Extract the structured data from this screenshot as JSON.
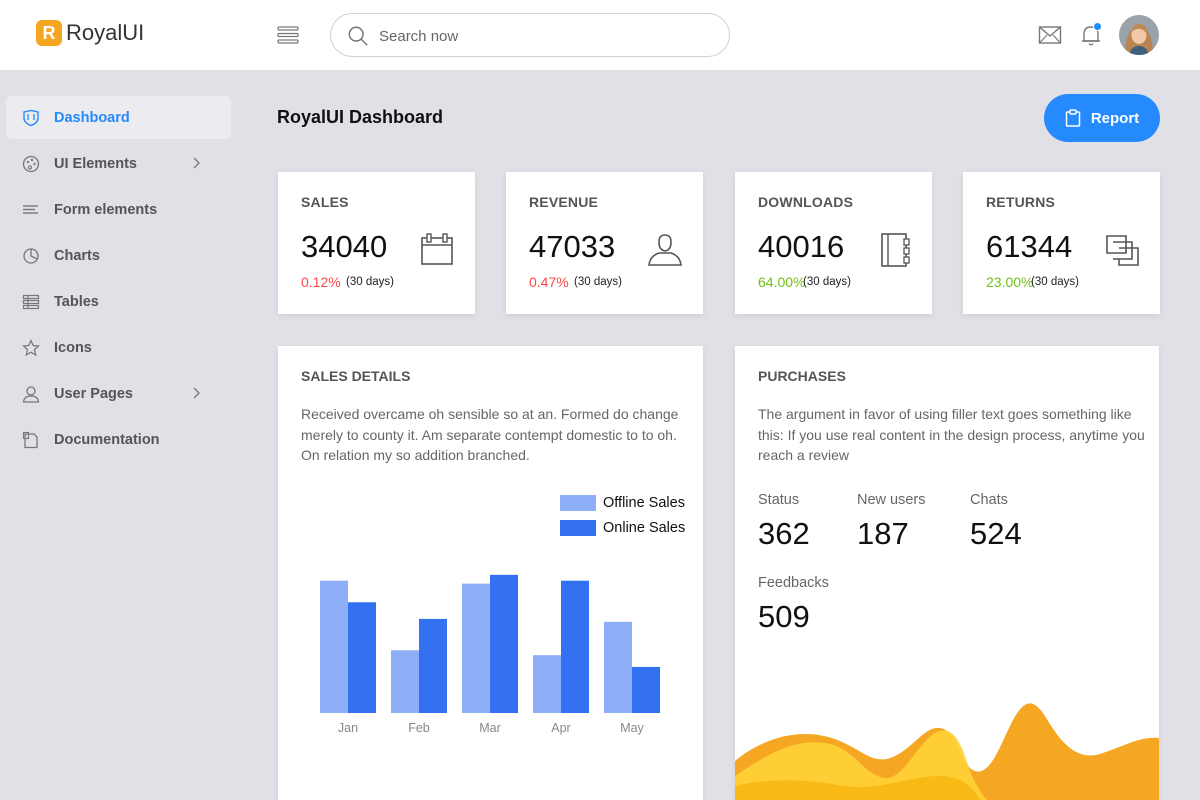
{
  "brand": {
    "logo_letter": "R",
    "name": "RoyalUI"
  },
  "search": {
    "placeholder": "Search now"
  },
  "sidebar": {
    "items": [
      {
        "label": "Dashboard",
        "icon": "shield-icon",
        "active": true
      },
      {
        "label": "UI Elements",
        "icon": "palette-icon",
        "has_submenu": true
      },
      {
        "label": "Form elements",
        "icon": "list-icon"
      },
      {
        "label": "Charts",
        "icon": "pie-chart-icon"
      },
      {
        "label": "Tables",
        "icon": "table-icon"
      },
      {
        "label": "Icons",
        "icon": "star-icon"
      },
      {
        "label": "User Pages",
        "icon": "user-icon",
        "has_submenu": true
      },
      {
        "label": "Documentation",
        "icon": "document-icon"
      }
    ]
  },
  "main": {
    "title": "RoyalUI Dashboard",
    "report_label": "Report",
    "stats": [
      {
        "title": "SALES",
        "value": "34040",
        "change": "0.12%",
        "period": "(30 days)",
        "trend_color": "#ff4747",
        "icon": "calendar-icon"
      },
      {
        "title": "REVENUE",
        "value": "47033",
        "change": "0.47%",
        "period": "(30 days)",
        "trend_color": "#ff4747",
        "icon": "user-icon"
      },
      {
        "title": "DOWNLOADS",
        "value": "40016",
        "change": "64.00%",
        "period": "(30 days)",
        "trend_color": "#71c016",
        "icon": "notebook-icon"
      },
      {
        "title": "RETURNS",
        "value": "61344",
        "change": "23.00%",
        "period": "(30 days)",
        "trend_color": "#71c016",
        "icon": "copy-icon"
      }
    ],
    "sales_details": {
      "title": "SALES DETAILS",
      "description_lines": [
        "Received overcame oh sensible so at an. Formed do change",
        "merely to county it. Am separate contempt domestic to to oh.",
        "On relation my so addition branched."
      ]
    },
    "purchases": {
      "title": "PURCHASES",
      "description_lines": [
        "The argument in favor of using filler text goes something like",
        "this: If you use real content in the design process, anytime you",
        "reach a review"
      ],
      "metrics": [
        {
          "label": "Status",
          "value": "362"
        },
        {
          "label": "New users",
          "value": "187"
        },
        {
          "label": "Chats",
          "value": "524"
        },
        {
          "label": "Feedbacks",
          "value": "509"
        }
      ]
    }
  },
  "colors": {
    "accent": "#248afd",
    "offline": "#8eaff8",
    "online": "#3371f2",
    "wave_light": "#fed136",
    "wave_dark": "#f5a623"
  },
  "chart_data": {
    "type": "bar",
    "categories": [
      "Jan",
      "Feb",
      "Mar",
      "Apr",
      "May"
    ],
    "series": [
      {
        "name": "Offline Sales",
        "values": [
          135,
          64,
          132,
          59,
          93
        ]
      },
      {
        "name": "Online Sales",
        "values": [
          113,
          96,
          141,
          135,
          47
        ]
      }
    ],
    "legend": "top-right",
    "ylim": [
      0,
      150
    ],
    "grid": false
  }
}
